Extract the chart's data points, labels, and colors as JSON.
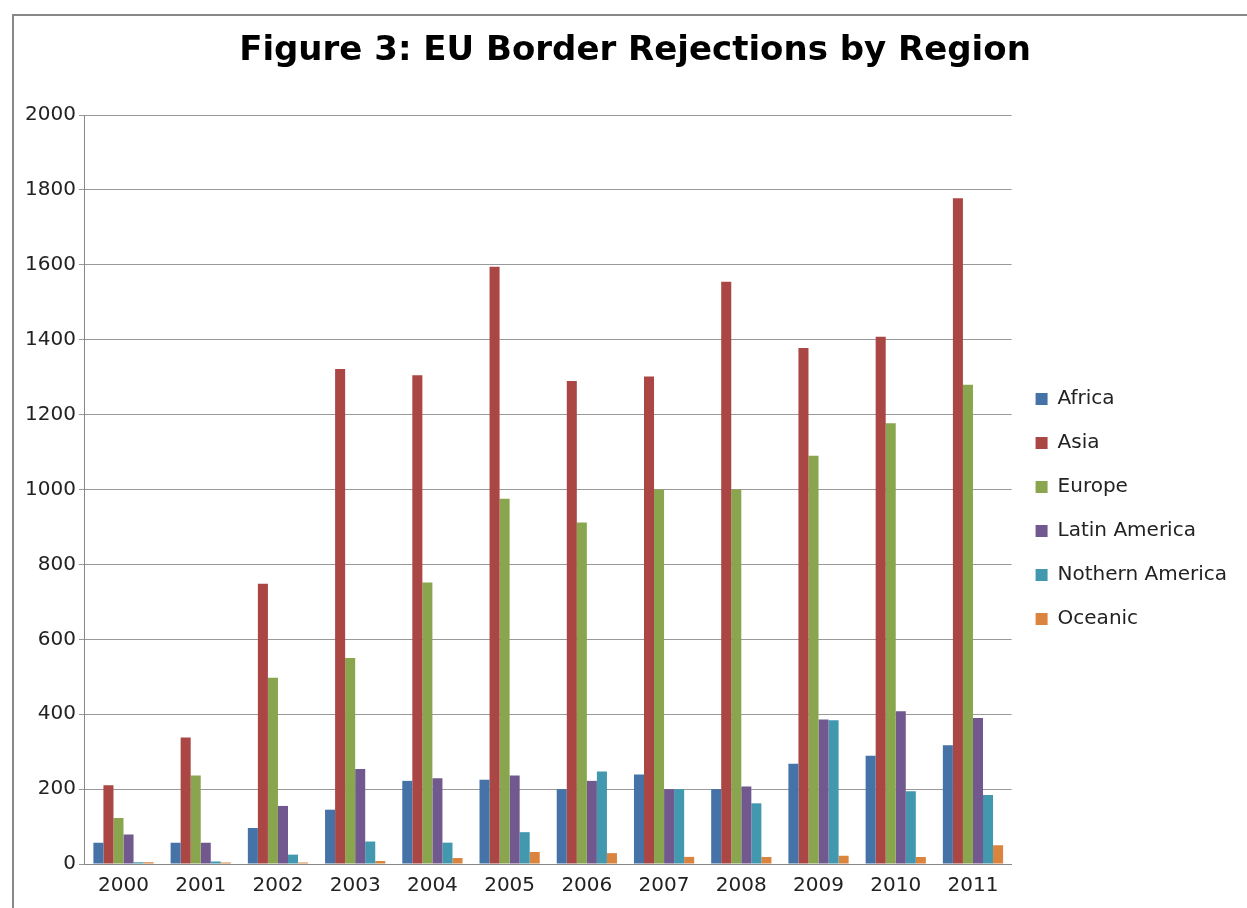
{
  "chart_data": {
    "type": "bar",
    "title": "Figure 3: EU Border Rejections by Region",
    "categories": [
      "2000",
      "2001",
      "2002",
      "2003",
      "2004",
      "2005",
      "2006",
      "2007",
      "2008",
      "2009",
      "2010",
      "2011"
    ],
    "series": [
      {
        "name": "Africa",
        "color": "#4572a7",
        "values": [
          57,
          57,
          96,
          145,
          222,
          225,
          200,
          239,
          200,
          268,
          289,
          317
        ]
      },
      {
        "name": "Asia",
        "color": "#aa4643",
        "values": [
          210,
          338,
          748,
          1322,
          1305,
          1595,
          1290,
          1302,
          1555,
          1378,
          1408,
          1778
        ]
      },
      {
        "name": "Europe",
        "color": "#89a54e",
        "values": [
          123,
          236,
          497,
          550,
          752,
          975,
          912,
          1000,
          1000,
          1090,
          1177,
          1280
        ]
      },
      {
        "name": "Latin America",
        "color": "#71588f",
        "values": [
          79,
          57,
          155,
          254,
          229,
          236,
          222,
          200,
          207,
          386,
          408,
          390
        ]
      },
      {
        "name": "Nothern America",
        "color": "#4198af",
        "values": [
          5,
          7,
          25,
          60,
          57,
          85,
          247,
          200,
          162,
          384,
          194,
          184
        ]
      },
      {
        "name": "Oceanic",
        "color": "#db843d",
        "values": [
          5,
          4,
          4,
          8,
          16,
          32,
          29,
          19,
          19,
          22,
          19,
          50
        ]
      }
    ],
    "ylim": [
      0,
      2000
    ],
    "yticks": [
      0,
      200,
      400,
      600,
      800,
      1000,
      1200,
      1400,
      1600,
      1800,
      2000
    ],
    "grid": "y",
    "legend": "right"
  }
}
